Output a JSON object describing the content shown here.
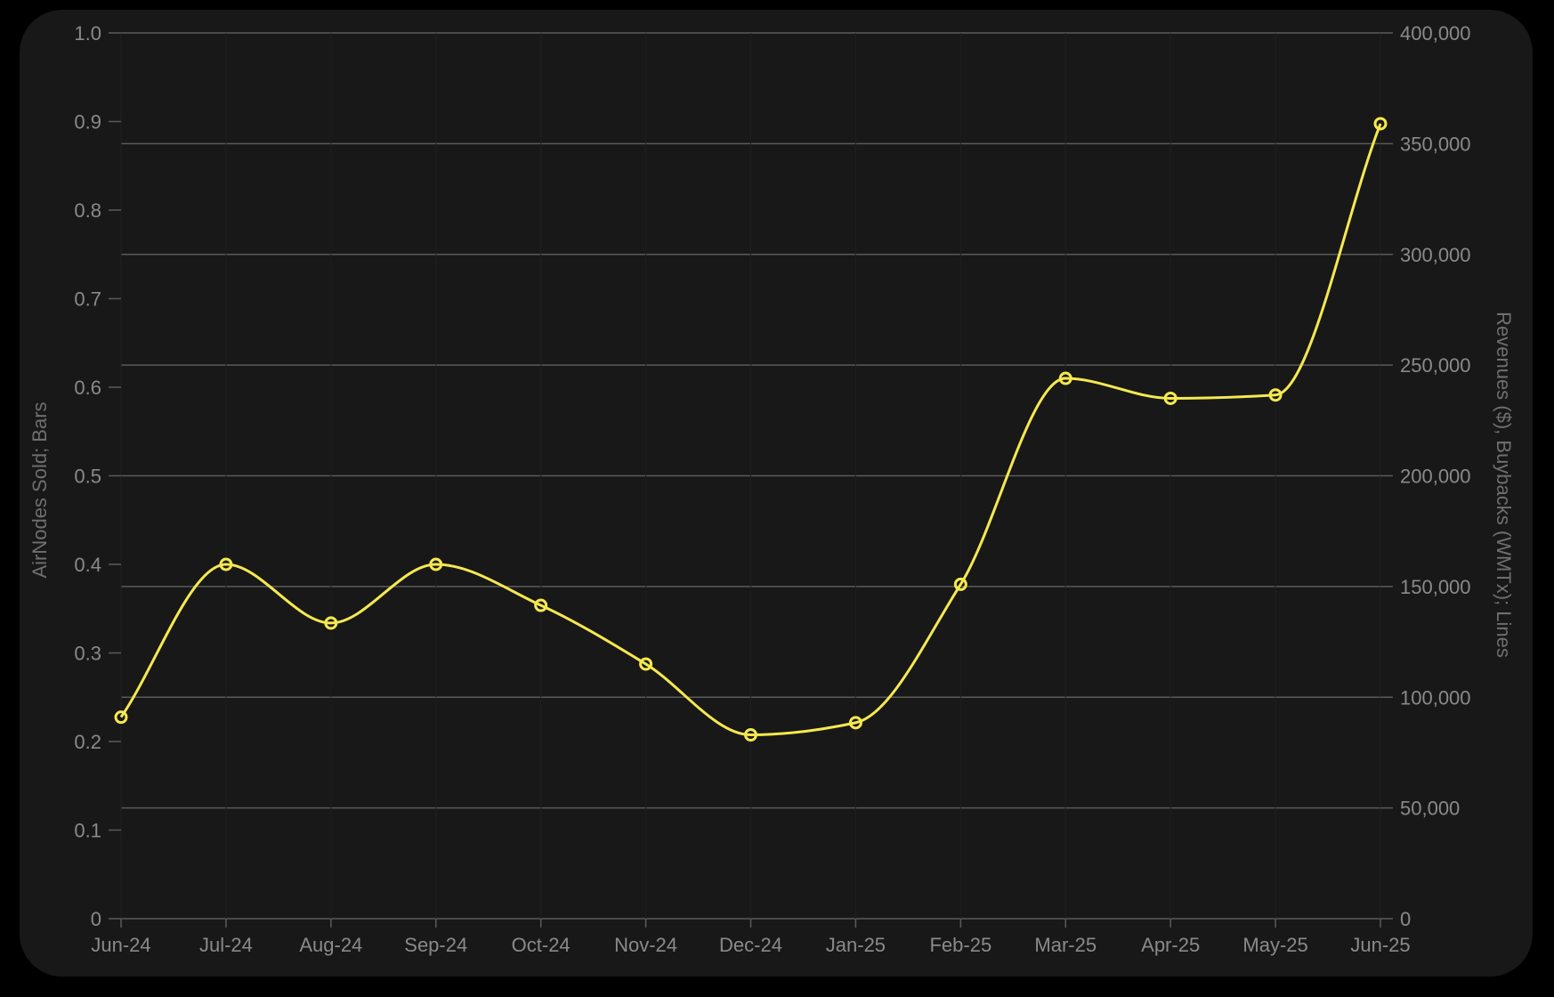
{
  "chart_data": {
    "type": "line",
    "title": "",
    "categories": [
      "Jun-24",
      "Jul-24",
      "Aug-24",
      "Sep-24",
      "Oct-24",
      "Nov-24",
      "Dec-24",
      "Jan-25",
      "Feb-25",
      "Mar-25",
      "Apr-25",
      "May-25",
      "Jun-25"
    ],
    "ylabel_left": "AirNodes Sold; Bars",
    "ylabel_right": "Revenues ($), Buybacks (WMTx); Lines",
    "ylim_left": [
      0,
      1.0
    ],
    "ylim_right": [
      0,
      400000
    ],
    "yticks_left": [
      "1.0",
      "0.9",
      "0.8",
      "0.7",
      "0.6",
      "0.5",
      "0.4",
      "0.3",
      "0.2",
      "0.1",
      "0"
    ],
    "yticks_right": [
      "400,000",
      "350,000",
      "300,000",
      "250,000",
      "200,000",
      "150,000",
      "100,000",
      "50,000",
      "0"
    ],
    "grid": true,
    "series": [
      {
        "axis": "right",
        "color": "#f5e94f",
        "values": [
          91000,
          160000,
          133500,
          160000,
          141500,
          115000,
          83000,
          88500,
          151000,
          244000,
          235000,
          236500,
          359000
        ]
      }
    ]
  }
}
